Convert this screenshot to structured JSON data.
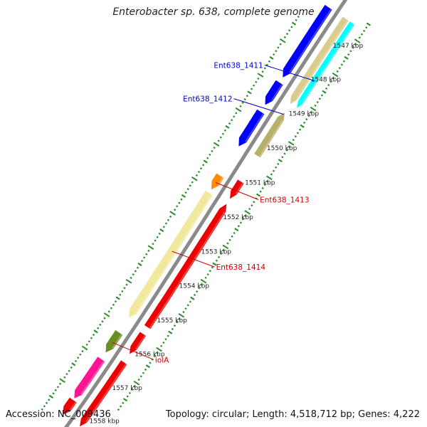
{
  "title": "Enterobacter sp. 638, complete genome",
  "footer": {
    "accession": "Accession: NC_009436",
    "topology": "Topology: circular; Length: 4,518,712 bp; Genes: 4,222"
  },
  "colors": {
    "backbone": "#8a8a8a",
    "tick": "#2e8b2e",
    "blue_label": "#0000cc",
    "red_label": "#cc0000"
  },
  "kbp_labels": [
    {
      "text": "1547 kbp",
      "pos": 1547
    },
    {
      "text": "1548 kbp",
      "pos": 1548
    },
    {
      "text": "1549 kbp",
      "pos": 1549
    },
    {
      "text": "1550 kbp",
      "pos": 1550
    },
    {
      "text": "1551 kbp",
      "pos": 1551
    },
    {
      "text": "1552 kbp",
      "pos": 1552
    },
    {
      "text": "1553 kbp",
      "pos": 1553
    },
    {
      "text": "1554 kbp",
      "pos": 1554
    },
    {
      "text": "1555 kbp",
      "pos": 1555
    },
    {
      "text": "1556 kbp",
      "pos": 1556
    },
    {
      "text": "1557 kbp",
      "pos": 1557
    },
    {
      "text": "1558 kbp",
      "pos": 1558
    }
  ],
  "features": [
    {
      "start": 1546.7,
      "end": 1549.2,
      "lane": "outer",
      "color": "#00ffff",
      "strand": "+"
    },
    {
      "start": 1546.7,
      "end": 1549.2,
      "lane": "inner",
      "color": "#d8cd8c",
      "strand": "+"
    },
    {
      "start": 1549.45,
      "end": 1550.7,
      "lane": "inner",
      "color": "#b7b06a",
      "strand": "-"
    },
    {
      "start": 1546.7,
      "end": 1548.75,
      "lane": "gene",
      "color": "#0000ff",
      "strand": "+"
    },
    {
      "start": 1548.9,
      "end": 1549.55,
      "lane": "gene",
      "color": "#0000ff",
      "strand": "+"
    },
    {
      "start": 1549.75,
      "end": 1550.75,
      "lane": "gene",
      "color": "#0000ff",
      "strand": "+"
    },
    {
      "start": 1551.45,
      "end": 1551.95,
      "lane": "inner",
      "color": "#ee0000",
      "strand": "+"
    },
    {
      "start": 1551.6,
      "end": 1552.0,
      "lane": "gene",
      "color": "#ff8c00",
      "strand": "+"
    },
    {
      "start": 1552.1,
      "end": 1555.7,
      "lane": "inner",
      "color": "#ee0000",
      "strand": "-"
    },
    {
      "start": 1552.1,
      "end": 1555.75,
      "lane": "gene",
      "color": "#f0e89c",
      "strand": "+"
    },
    {
      "start": 1555.9,
      "end": 1556.5,
      "lane": "inner",
      "color": "#ee0000",
      "strand": "+"
    },
    {
      "start": 1556.2,
      "end": 1556.8,
      "lane": "gene",
      "color": "#6b8e23",
      "strand": "+"
    },
    {
      "start": 1556.75,
      "end": 1558.7,
      "lane": "inner",
      "color": "#ee0000",
      "strand": "+"
    },
    {
      "start": 1557.0,
      "end": 1558.2,
      "lane": "gene",
      "color": "#ff1493",
      "strand": "+"
    },
    {
      "start": 1558.25,
      "end": 1558.7,
      "lane": "gene",
      "color": "#ee0000",
      "strand": "+"
    }
  ],
  "gene_labels": [
    {
      "text": "Ent638_1411",
      "color": "blue",
      "pos": 1548.4,
      "lane": "outer"
    },
    {
      "text": "Ent638_1412",
      "color": "blue",
      "pos": 1549.5,
      "lane": "inner"
    },
    {
      "text": "Ent638_1413",
      "color": "red",
      "pos": 1551.8,
      "lane": "gene"
    },
    {
      "text": "Ent638_1414",
      "color": "red",
      "pos": 1553.8,
      "lane": "gene"
    },
    {
      "text": "iolA",
      "color": "red",
      "pos": 1556.5,
      "lane": "gene"
    }
  ]
}
